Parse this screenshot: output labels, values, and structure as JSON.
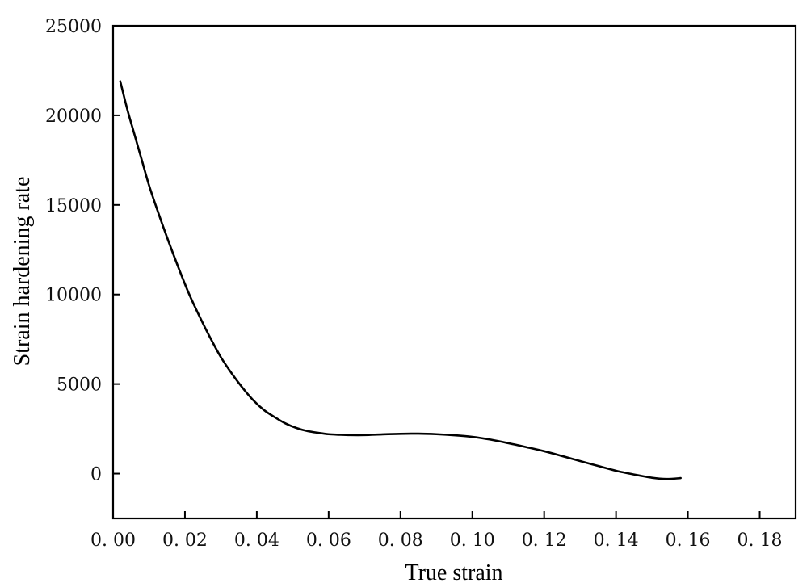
{
  "chart_data": {
    "type": "line",
    "title": "",
    "xlabel": "True strain",
    "ylabel": "Strain hardening rate",
    "xlim": [
      0.0,
      0.19
    ],
    "ylim": [
      -2500,
      25000
    ],
    "x_ticks": [
      0.0,
      0.02,
      0.04,
      0.06,
      0.08,
      0.1,
      0.12,
      0.14,
      0.16,
      0.18
    ],
    "x_tick_labels": [
      "0. 00",
      "0. 02",
      "0. 04",
      "0. 06",
      "0. 08",
      "0. 10",
      "0. 12",
      "0. 14",
      "0. 16",
      "0. 18"
    ],
    "y_ticks": [
      0,
      5000,
      10000,
      15000,
      20000,
      25000
    ],
    "y_tick_labels": [
      "0",
      "5000",
      "10000",
      "15000",
      "20000",
      "25000"
    ],
    "grid": false,
    "legend": "none",
    "line_color": "#000000",
    "series": [
      {
        "x": [
          0.002,
          0.004,
          0.006,
          0.008,
          0.01,
          0.012,
          0.015,
          0.018,
          0.021,
          0.024,
          0.027,
          0.03,
          0.033,
          0.036,
          0.039,
          0.042,
          0.045,
          0.048,
          0.051,
          0.054,
          0.057,
          0.06,
          0.063,
          0.066,
          0.07,
          0.075,
          0.08,
          0.085,
          0.09,
          0.095,
          0.1,
          0.105,
          0.11,
          0.115,
          0.12,
          0.125,
          0.13,
          0.135,
          0.14,
          0.145,
          0.15,
          0.154,
          0.158
        ],
        "y": [
          21900,
          20300,
          18900,
          17500,
          16100,
          14900,
          13200,
          11600,
          10100,
          8800,
          7600,
          6500,
          5600,
          4800,
          4100,
          3550,
          3150,
          2800,
          2550,
          2380,
          2280,
          2200,
          2170,
          2150,
          2150,
          2190,
          2220,
          2230,
          2200,
          2140,
          2050,
          1900,
          1700,
          1480,
          1250,
          980,
          700,
          430,
          160,
          -50,
          -230,
          -300,
          -250
        ]
      }
    ]
  }
}
